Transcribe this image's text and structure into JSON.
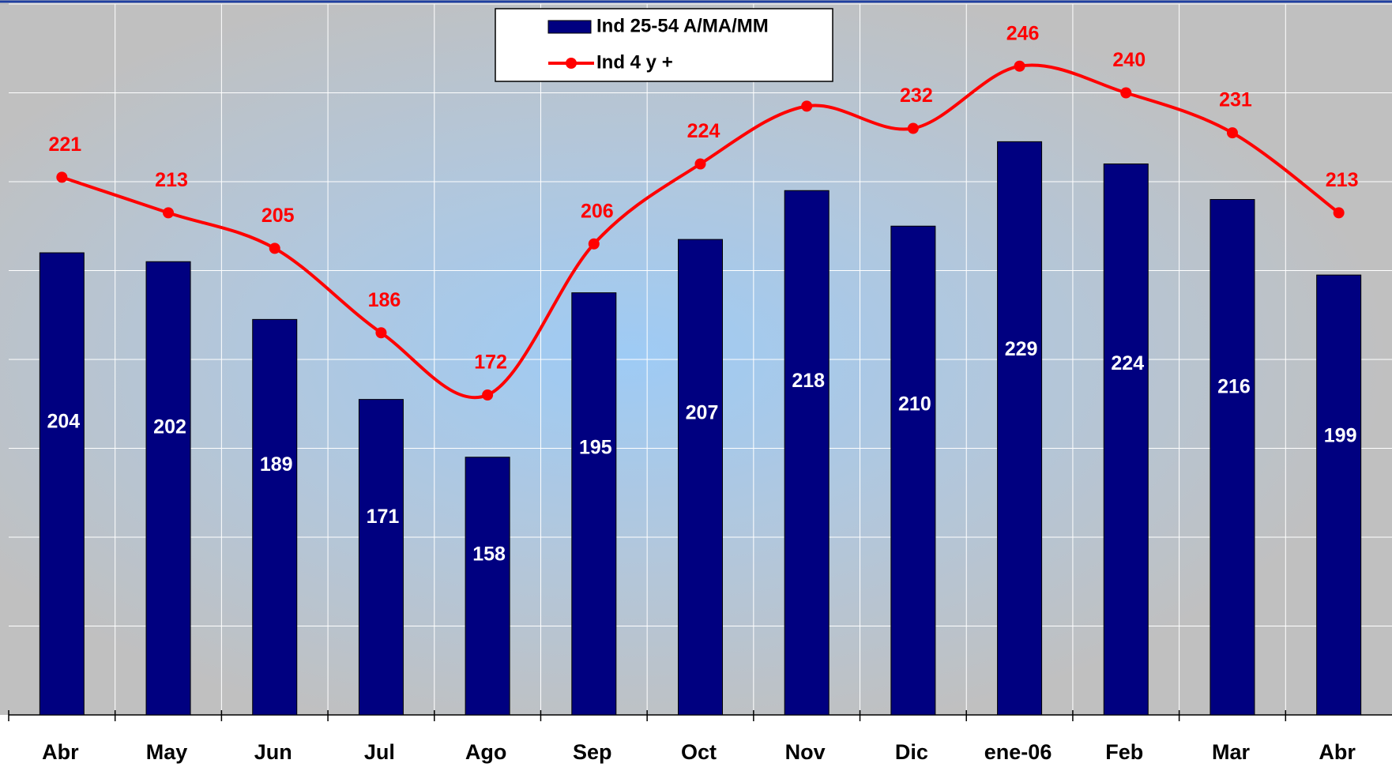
{
  "chart_data": {
    "type": "bar_line",
    "categories": [
      "Abr",
      "May",
      "Jun",
      "Jul",
      "Ago",
      "Sep",
      "Oct",
      "Nov",
      "Dic",
      "ene-06",
      "Feb",
      "Mar",
      "Abr"
    ],
    "series": [
      {
        "name": "Ind 25-54 A/MA/MM",
        "type": "bar",
        "color": "#000080",
        "values": [
          204,
          202,
          189,
          171,
          158,
          195,
          207,
          218,
          210,
          229,
          224,
          216,
          199
        ]
      },
      {
        "name": "Ind 4 y +",
        "type": "line",
        "color": "#ff0000",
        "values": [
          221,
          213,
          205,
          186,
          172,
          206,
          224,
          237,
          232,
          246,
          240,
          231,
          213
        ]
      }
    ],
    "ylim": [
      100,
      260
    ],
    "yticks": [
      120,
      140,
      160,
      180,
      200,
      220,
      240,
      260
    ],
    "grid": true,
    "legend": "top"
  }
}
